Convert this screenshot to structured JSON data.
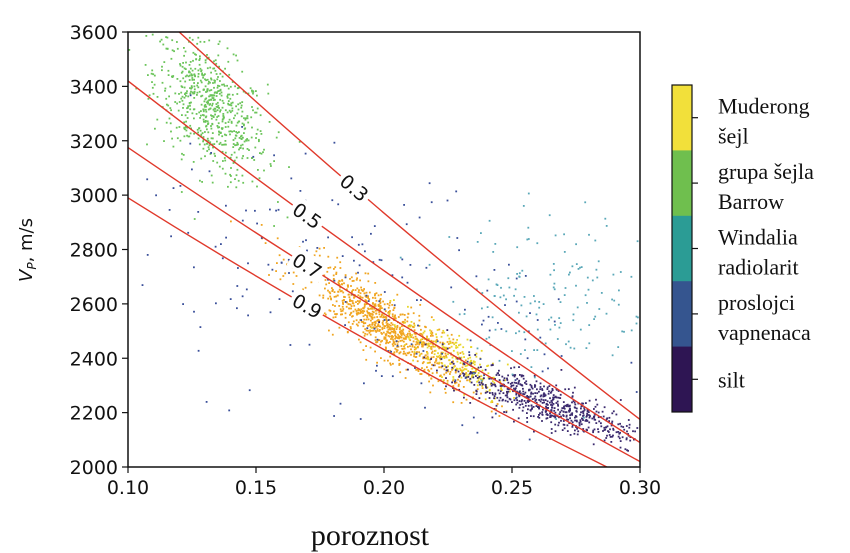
{
  "chart_data": {
    "type": "scatter",
    "title": "",
    "xlabel": "poroznost",
    "ylabel_main": "V",
    "ylabel_sub": "P",
    "ylabel_unit": ", m/s",
    "xlim": [
      0.1,
      0.3
    ],
    "ylim": [
      2000,
      3600
    ],
    "xticks": [
      "0.10",
      "0.15",
      "0.20",
      "0.25",
      "0.30"
    ],
    "yticks": [
      "2000",
      "2200",
      "2400",
      "2600",
      "2800",
      "3000",
      "3200",
      "3400",
      "3600"
    ],
    "grid": false,
    "curves": [
      {
        "label": "0.3",
        "x": [
          0.12,
          0.3
        ],
        "y": [
          3600,
          2175
        ]
      },
      {
        "label": "0.5",
        "x": [
          0.1,
          0.3
        ],
        "y": [
          3420,
          2090
        ]
      },
      {
        "label": "0.7",
        "x": [
          0.1,
          0.3
        ],
        "y": [
          3175,
          2020
        ]
      },
      {
        "label": "0.9",
        "x": [
          0.1,
          0.3
        ],
        "y": [
          2990,
          1940
        ]
      }
    ],
    "clusters": [
      {
        "name": "grupa šejla Barrow",
        "color": "#6bc45a",
        "n": 650,
        "cx": 0.132,
        "cy": 3320,
        "sx": 0.011,
        "sy": 110,
        "tilt": -6000
      },
      {
        "name": "Muderong šejl",
        "color": "#f0a520",
        "n": 900,
        "cx": 0.2,
        "cy": 2525,
        "sx": 0.016,
        "sy": 55,
        "tilt": -6200
      },
      {
        "name": "Muderong šejl",
        "color": "#e8d62a",
        "n": 220,
        "cx": 0.228,
        "cy": 2400,
        "sx": 0.01,
        "sy": 45,
        "tilt": -5500
      },
      {
        "name": "silt",
        "color": "#3b2a6e",
        "n": 650,
        "cx": 0.262,
        "cy": 2240,
        "sx": 0.019,
        "sy": 40,
        "tilt": -3300
      },
      {
        "name": "Windalia radiolarit",
        "color": "#5aa8b8",
        "n": 160,
        "cx": 0.265,
        "cy": 2640,
        "sx": 0.02,
        "sy": 150,
        "tilt": 0
      },
      {
        "name": "proslojci vapnenaca",
        "color": "#3a4f9a",
        "n": 200,
        "cx": 0.19,
        "cy": 2650,
        "sx": 0.045,
        "sy": 250,
        "tilt": -3000
      }
    ],
    "colorbar": {
      "entries": [
        {
          "lines": [
            "Muderong",
            "šejl"
          ],
          "color": "#f2e03a"
        },
        {
          "lines": [
            "grupa šejla",
            "Barrow"
          ],
          "color": "#6fbf4e"
        },
        {
          "lines": [
            "Windalia",
            "radiolarit"
          ],
          "color": "#2b9c95"
        },
        {
          "lines": [
            "proslojci",
            "vapnenaca"
          ],
          "color": "#35558f"
        },
        {
          "lines": [
            "silt"
          ],
          "color": "#2e1553"
        }
      ]
    }
  }
}
